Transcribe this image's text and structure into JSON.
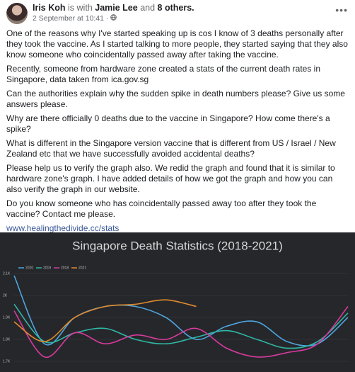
{
  "post": {
    "author": "Iris Koh",
    "with_text": "is with",
    "tagged": "Jamie Lee",
    "and_text": "and",
    "others": "8 others.",
    "date": "2 September at 10:41 ·",
    "paragraphs": [
      "One of the reasons why I've started speaking up is cos I know of 3 deaths personally after they took the vaccine. As I started talking to more people, they started saying that they also know someone who coincidentally passed away after taking the vaccine.",
      "Recently, someone from hardware zone created a stats of the current death rates in Singapore, data taken from ica.gov.sg",
      "Can the authorities explain why the sudden spike in death numbers please? Give us some answers please.",
      "Why are there officially 0 deaths due to the vaccine in Singapore? How come there's a spike?",
      "What is different in the Singapore version vaccine that is different from US / Israel / New Zealand etc that we have successfully avoided accidental deaths?",
      "Please help us to verify the graph also. We redid the graph and found that it is similar to hardware zone's graph. I have added details of how we got the graph and how you can also verify the graph in our website.",
      "Do you know someone who has coincidentally passed away too after they took the vaccine? Contact me please."
    ],
    "link": "www.healingthedivide.cc/stats"
  },
  "chart_data": {
    "type": "line",
    "title": "Singapore Death Statistics (2018-2021)",
    "series": [
      {
        "name": "2020",
        "color": "#4da6e0",
        "values": [
          2090,
          1780,
          1900,
          1950,
          1950,
          1900,
          1800,
          1860,
          1880,
          1790,
          1780,
          1900
        ]
      },
      {
        "name": "2019",
        "color": "#2fb8a6",
        "values": [
          1960,
          1790,
          1830,
          1850,
          1800,
          1780,
          1810,
          1840,
          1800,
          1760,
          1790,
          1920
        ]
      },
      {
        "name": "2018",
        "color": "#d83b9e",
        "values": [
          1930,
          1720,
          1830,
          1780,
          1820,
          1800,
          1850,
          1760,
          1720,
          1740,
          1780,
          1950
        ]
      },
      {
        "name": "2021",
        "color": "#e08a2e",
        "values": [
          1880,
          1790,
          1900,
          1950,
          1960,
          1980,
          1950,
          null,
          null,
          null,
          null,
          null
        ]
      }
    ],
    "ylim": [
      1650,
      2150
    ],
    "yticks": [
      {
        "value": 2100,
        "label": "2.1K"
      },
      {
        "value": 2000,
        "label": "2K"
      },
      {
        "value": 1900,
        "label": "1.9K"
      },
      {
        "value": 1800,
        "label": "1.8K"
      },
      {
        "value": 1700,
        "label": "1.7K"
      }
    ],
    "grid": true
  }
}
